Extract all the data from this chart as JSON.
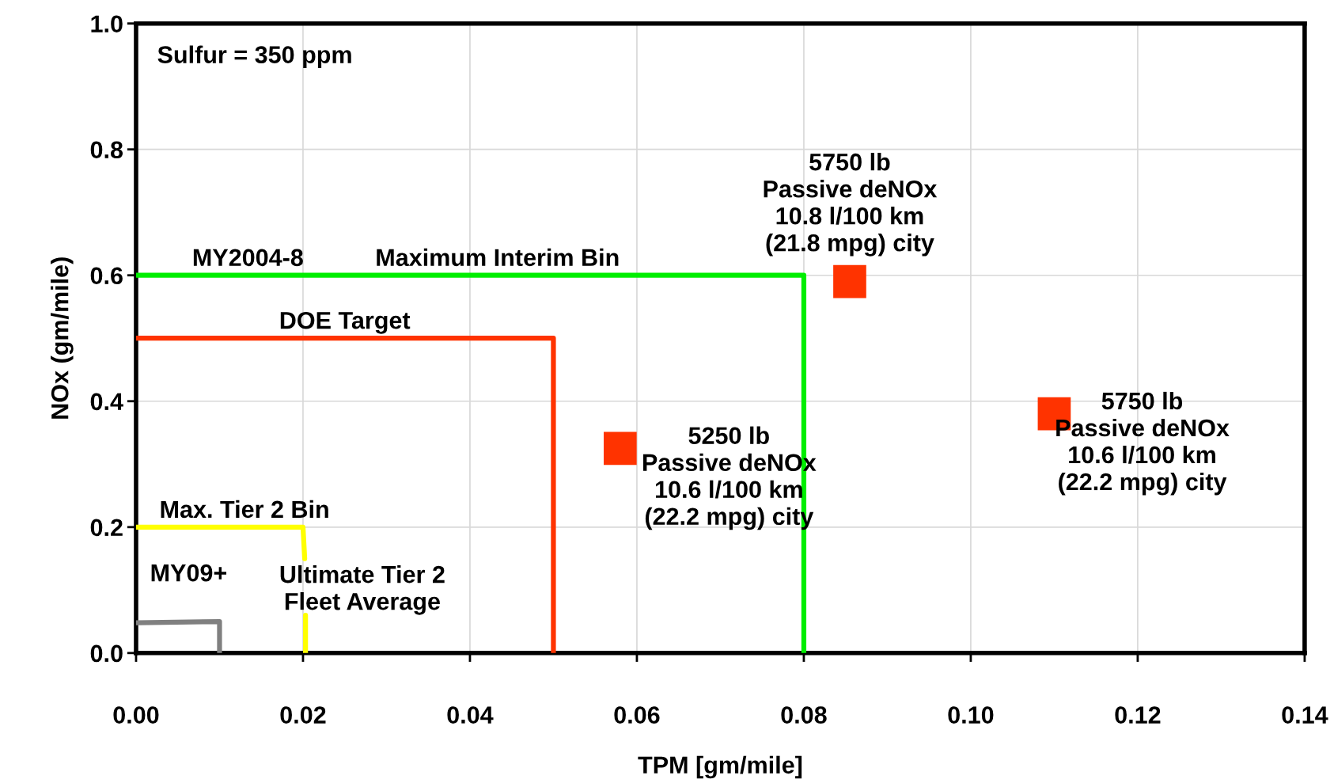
{
  "chart_data": {
    "type": "scatter",
    "xlabel": "TPM [gm/mile]",
    "ylabel": "NOx (gm/mile)",
    "xlim": [
      0,
      0.14
    ],
    "ylim": [
      0,
      1.0
    ],
    "xticks": [
      {
        "value": 0,
        "label": "0.00"
      },
      {
        "value": 0.02,
        "label": "0.02"
      },
      {
        "value": 0.04,
        "label": "0.04"
      },
      {
        "value": 0.06,
        "label": "0.06"
      },
      {
        "value": 0.08,
        "label": "0.08"
      },
      {
        "value": 0.1,
        "label": "0.10"
      },
      {
        "value": 0.12,
        "label": "0.12"
      },
      {
        "value": 0.14,
        "label": "0.14"
      }
    ],
    "yticks": [
      {
        "value": 0,
        "label": "0.0"
      },
      {
        "value": 0.2,
        "label": "0.2"
      },
      {
        "value": 0.4,
        "label": "0.4"
      },
      {
        "value": 0.6,
        "label": "0.6"
      },
      {
        "value": 0.8,
        "label": "0.8"
      },
      {
        "value": 1.0,
        "label": "1.0"
      }
    ],
    "grid": true,
    "series": [
      {
        "type": "line",
        "color": "#00ee00",
        "x": [
          0,
          0.08,
          0.08
        ],
        "values": [
          0.6,
          0.6,
          0
        ]
      },
      {
        "type": "line",
        "color": "#ff3300",
        "x": [
          0,
          0.05,
          0.05
        ],
        "values": [
          0.5,
          0.5,
          0
        ]
      },
      {
        "type": "line",
        "color": "#ffff00",
        "x": [
          0,
          0.02,
          0.0202,
          null,
          0.0203,
          0.0203
        ],
        "values": [
          0.2,
          0.2,
          0.15,
          null,
          0.06,
          0
        ]
      },
      {
        "type": "line",
        "color": "#808080",
        "x": [
          0,
          0.01,
          0.01
        ],
        "values": [
          0.048,
          0.05,
          0
        ]
      },
      {
        "marker": "square",
        "color": "#ff3300",
        "x": [
          0.0855,
          0.058,
          0.11
        ],
        "values": [
          0.59,
          0.325,
          0.38
        ]
      }
    ],
    "annotations": [
      "Sulfur = 350 ppm",
      {
        "text": "MY2004-8",
        "x": 0.0134,
        "y": 0.6
      },
      {
        "text": "Maximum Interim Bin",
        "x": 0.0433,
        "y": 0.6
      },
      {
        "text": "DOE Target",
        "x": 0.025,
        "y": 0.5
      },
      {
        "text": "Max. Tier 2 Bin",
        "x": 0.013,
        "y": 0.2
      },
      "MY09+",
      "Ultimate Tier 2\nFleet Average",
      {
        "text": "5750 lb\nPassive deNOx\n10.8 l/100 km\n(21.8 mpg) city",
        "x": 0.0855,
        "y": 0.59
      },
      {
        "text": "5250 lb\nPassive deNOx\n10.6 l/100 km\n(22.2 mpg) city",
        "x": 0.058,
        "y": 0.325
      },
      {
        "text": "5750 lb\nPassive deNOx\n10.6 l/100 km\n(22.2 mpg) city",
        "x": 0.11,
        "y": 0.38
      }
    ]
  }
}
